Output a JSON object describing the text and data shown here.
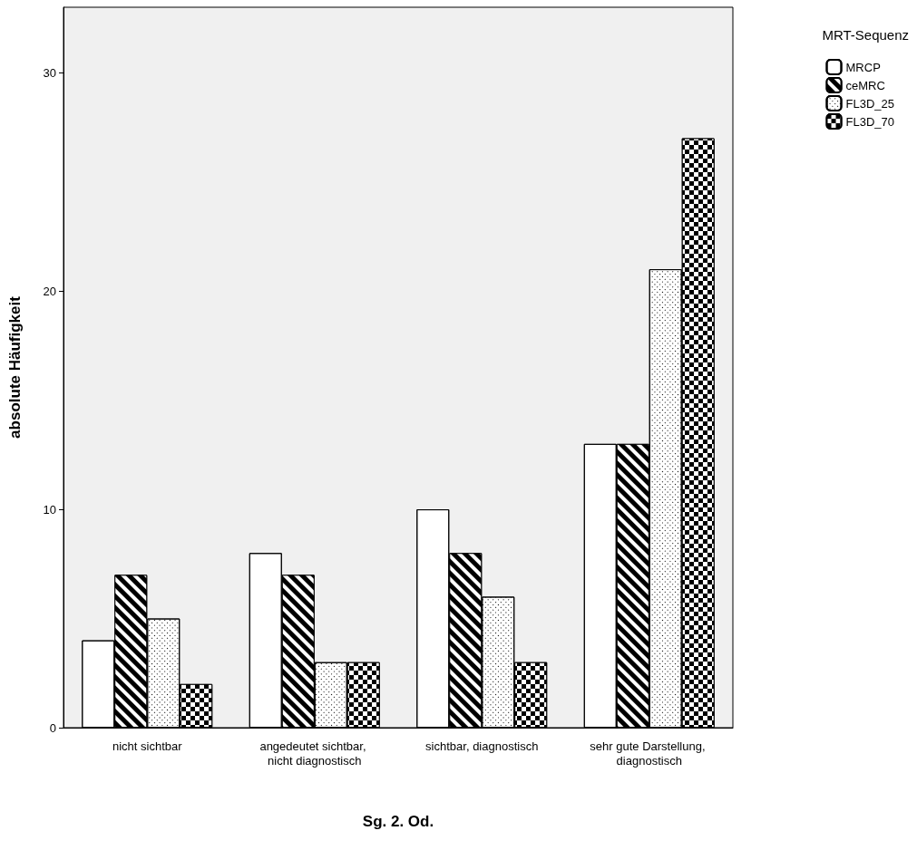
{
  "chart_data": {
    "type": "bar",
    "xlabel": "Sg. 2. Od.",
    "ylabel": "absolute Häufigkeit",
    "legend_title": "MRT-Sequenz",
    "categories": [
      "nicht sichtbar",
      "angedeutet sichtbar, nicht diagnostisch",
      "sichtbar, diagnostisch",
      "sehr gute Darstellung, diagnostisch"
    ],
    "series": [
      {
        "name": "MRCP",
        "color": "#ffffff",
        "values": [
          4,
          8,
          10,
          13
        ]
      },
      {
        "name": "ceMRC",
        "color": "#000000",
        "values": [
          7,
          7,
          8,
          13
        ]
      },
      {
        "name": "FL3D_25",
        "color": "#ffffff",
        "values": [
          5,
          3,
          6,
          21
        ]
      },
      {
        "name": "FL3D_70",
        "color": "#000000",
        "values": [
          2,
          3,
          3,
          27
        ]
      }
    ],
    "ylim": [
      0,
      33
    ],
    "yticks": [
      0,
      10,
      20,
      30
    ],
    "grid": false,
    "legend": "top right"
  }
}
